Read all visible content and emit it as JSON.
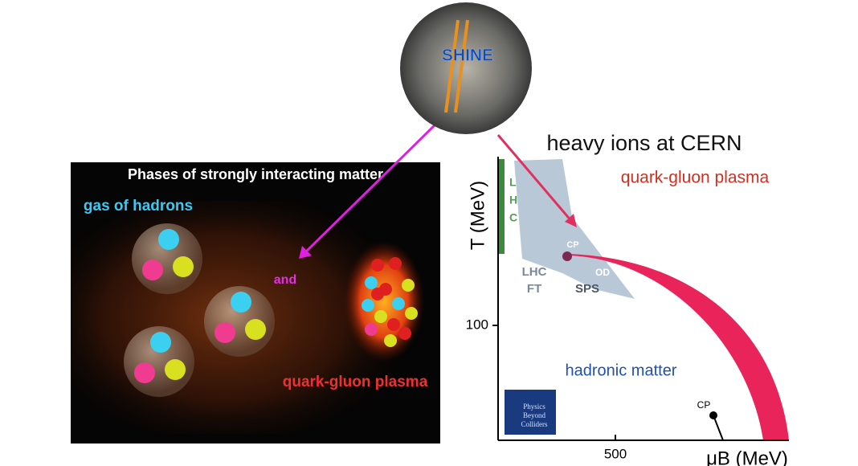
{
  "logo": {
    "text": "SHINE"
  },
  "left_panel": {
    "title": "Phases of strongly interacting matter",
    "gas_label": "gas of hadrons",
    "and_label": "and",
    "qgp_label": "quark-gluon plasma"
  },
  "right_panel": {
    "title": "heavy ions at CERN",
    "qgp_label": "quark-gluon plasma",
    "lhc_letters": [
      "L",
      "H",
      "C"
    ],
    "cp_top": "CP",
    "lhc_ft": [
      "LHC",
      "FT"
    ],
    "od": "OD",
    "sps": "SPS",
    "hadronic_label": "hadronic matter",
    "cp_bottom": "CP",
    "pbc_logo": [
      "Physics",
      "Beyond",
      "Colliders"
    ],
    "y_axis_label": "T (MeV)",
    "x_axis_label": "μB (MeV)",
    "y_tick": "100",
    "x_tick": "500"
  }
}
